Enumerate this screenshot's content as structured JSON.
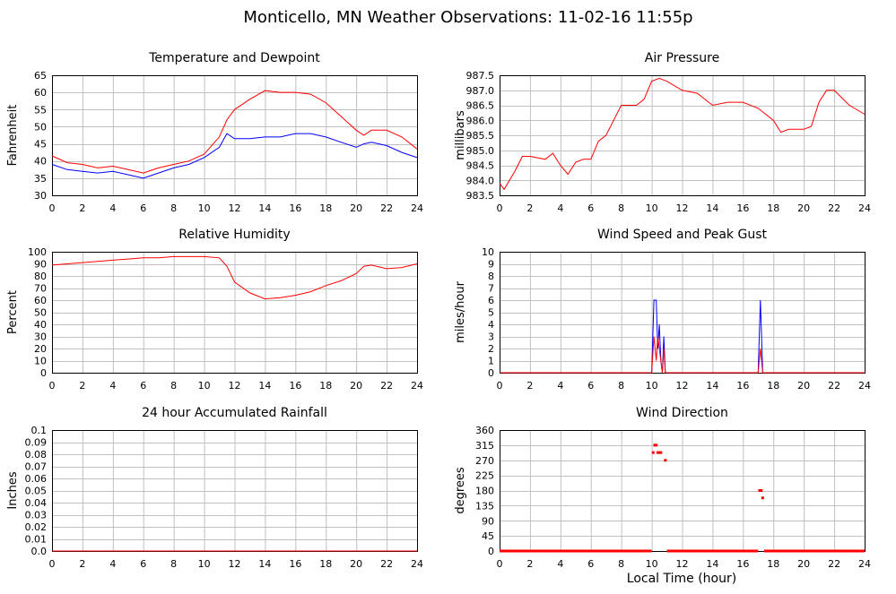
{
  "title": "Monticello, MN Weather Observations: 11-02-16 11:55p",
  "xaxis_label": "Local Time (hour)",
  "colors": {
    "red": "#ff0000",
    "blue": "#0000ff",
    "grid": "#c0c0c0",
    "axis": "#000000"
  },
  "chart_data": [
    {
      "id": "temp",
      "type": "line",
      "title": "Temperature and Dewpoint",
      "ylabel": "Fahrenheit",
      "xlim": [
        0,
        24
      ],
      "ylim": [
        30,
        65
      ],
      "xticks": [
        0,
        2,
        4,
        6,
        8,
        10,
        12,
        14,
        16,
        18,
        20,
        22,
        24
      ],
      "yticks": [
        30,
        35,
        40,
        45,
        50,
        55,
        60,
        65
      ],
      "grid": true,
      "series": [
        {
          "color": "#ff0000",
          "x": [
            0,
            1,
            2,
            3,
            4,
            5,
            6,
            7,
            8,
            9,
            10,
            11,
            11.5,
            12,
            13,
            14,
            15,
            16,
            17,
            18,
            19,
            20,
            20.5,
            21,
            22,
            23,
            24
          ],
          "y": [
            41.5,
            39.5,
            39,
            38,
            38.5,
            37.5,
            36.5,
            38,
            39,
            40,
            42,
            47,
            52,
            55,
            58,
            60.5,
            60,
            60,
            59.5,
            57,
            53,
            49,
            47.5,
            49,
            49,
            47,
            43.5
          ]
        },
        {
          "color": "#0000ff",
          "x": [
            0,
            1,
            2,
            3,
            4,
            5,
            6,
            7,
            8,
            9,
            10,
            11,
            11.5,
            12,
            13,
            14,
            15,
            16,
            17,
            18,
            19,
            20,
            20.5,
            21,
            22,
            23,
            24
          ],
          "y": [
            39,
            37.5,
            37,
            36.5,
            37,
            36,
            35,
            36.5,
            38,
            39,
            41,
            44,
            48,
            46.5,
            46.5,
            47,
            47,
            48,
            48,
            47,
            45.5,
            44,
            45,
            45.5,
            44.5,
            42.5,
            41
          ]
        }
      ]
    },
    {
      "id": "pressure",
      "type": "line",
      "title": "Air Pressure",
      "ylabel": "millibars",
      "xlim": [
        0,
        24
      ],
      "ylim": [
        983.5,
        987.5
      ],
      "xticks": [
        0,
        2,
        4,
        6,
        8,
        10,
        12,
        14,
        16,
        18,
        20,
        22,
        24
      ],
      "yticks": [
        "983.5",
        "984.0",
        "984.5",
        "985.0",
        "985.5",
        "986.0",
        "986.5",
        "987.0",
        "987.5"
      ],
      "grid": true,
      "series": [
        {
          "color": "#ff0000",
          "x": [
            0,
            0.3,
            1,
            1.5,
            2,
            3,
            3.5,
            4,
            4.5,
            5,
            5.5,
            6,
            6.5,
            7,
            7.5,
            8,
            9,
            9.5,
            10,
            10.5,
            11,
            12,
            13,
            14,
            15,
            16,
            17,
            18,
            18.5,
            19,
            20,
            20.5,
            21,
            21.5,
            22,
            23,
            24
          ],
          "y": [
            983.9,
            983.7,
            984.3,
            984.8,
            984.8,
            984.7,
            984.9,
            984.5,
            984.2,
            984.6,
            984.7,
            984.7,
            985.3,
            985.5,
            986.0,
            986.5,
            986.5,
            986.7,
            987.3,
            987.4,
            987.3,
            987.0,
            986.9,
            986.5,
            986.6,
            986.6,
            986.4,
            986.0,
            985.6,
            985.7,
            985.7,
            985.8,
            986.6,
            987.0,
            987.0,
            986.5,
            986.2
          ]
        }
      ]
    },
    {
      "id": "rh",
      "type": "line",
      "title": "Relative Humidity",
      "ylabel": "Percent",
      "xlim": [
        0,
        24
      ],
      "ylim": [
        0,
        100
      ],
      "xticks": [
        0,
        2,
        4,
        6,
        8,
        10,
        12,
        14,
        16,
        18,
        20,
        22,
        24
      ],
      "yticks": [
        0,
        10,
        20,
        30,
        40,
        50,
        60,
        70,
        80,
        90,
        100
      ],
      "grid": true,
      "series": [
        {
          "color": "#ff0000",
          "x": [
            0,
            1,
            2,
            3,
            4,
            5,
            6,
            7,
            8,
            9,
            10,
            11,
            11.5,
            12,
            13,
            14,
            15,
            16,
            17,
            18,
            19,
            20,
            20.5,
            21,
            22,
            23,
            24
          ],
          "y": [
            89,
            90,
            91,
            92,
            93,
            94,
            95,
            95,
            96,
            96,
            96,
            95,
            88,
            75,
            66,
            61,
            62,
            64,
            67,
            72,
            76,
            82,
            88,
            89,
            86,
            87,
            90
          ]
        }
      ]
    },
    {
      "id": "wind",
      "type": "line",
      "title": "Wind Speed and Peak Gust",
      "ylabel": "miles/hour",
      "xlim": [
        0,
        24
      ],
      "ylim": [
        0,
        10
      ],
      "xticks": [
        0,
        2,
        4,
        6,
        8,
        10,
        12,
        14,
        16,
        18,
        20,
        22,
        24
      ],
      "yticks": [
        0,
        1,
        2,
        3,
        4,
        5,
        6,
        7,
        8,
        9,
        10
      ],
      "grid": true,
      "series": [
        {
          "color": "#0000ff",
          "x": [
            0,
            10.0,
            10.15,
            10.3,
            10.4,
            10.5,
            10.6,
            10.7,
            10.8,
            10.9,
            11.0,
            17.0,
            17.15,
            17.3,
            24
          ],
          "y": [
            0,
            0,
            6,
            6,
            2,
            4,
            1,
            0,
            3,
            0,
            0,
            0,
            6,
            0,
            0
          ]
        },
        {
          "color": "#ff0000",
          "x": [
            0,
            10.0,
            10.15,
            10.3,
            10.4,
            10.5,
            10.6,
            10.7,
            10.8,
            10.9,
            11.0,
            17.0,
            17.15,
            17.3,
            24
          ],
          "y": [
            0,
            0,
            3,
            1,
            3,
            2,
            1,
            0,
            2,
            0,
            0,
            0,
            2,
            0,
            0
          ]
        }
      ]
    },
    {
      "id": "rain",
      "type": "line",
      "title": "24 hour Accumulated Rainfall",
      "ylabel": "Inches",
      "xlim": [
        0,
        24
      ],
      "ylim": [
        0,
        0.1
      ],
      "xticks": [
        0,
        2,
        4,
        6,
        8,
        10,
        12,
        14,
        16,
        18,
        20,
        22,
        24
      ],
      "yticks": [
        "0.0",
        "0.01",
        "0.02",
        "0.03",
        "0.04",
        "0.05",
        "0.06",
        "0.07",
        "0.08",
        "0.09",
        "0.1"
      ],
      "grid": true,
      "series": [
        {
          "color": "#ff0000",
          "x": [
            0,
            24
          ],
          "y": [
            0,
            0
          ]
        }
      ]
    },
    {
      "id": "winddir",
      "type": "scatter",
      "title": "Wind Direction",
      "ylabel": "degrees",
      "xlabel": "Local Time (hour)",
      "xlim": [
        0,
        24
      ],
      "ylim": [
        0,
        360
      ],
      "xticks": [
        0,
        2,
        4,
        6,
        8,
        10,
        12,
        14,
        16,
        18,
        20,
        22,
        24
      ],
      "yticks": [
        0,
        45,
        90,
        135,
        180,
        225,
        270,
        315,
        360
      ],
      "grid": true,
      "series": [
        {
          "color": "#ff0000",
          "x": [
            10.1,
            10.2,
            10.3,
            10.4,
            10.5,
            10.6,
            10.9,
            17.1,
            17.2,
            17.3
          ],
          "y": [
            293,
            315,
            315,
            293,
            293,
            293,
            270,
            180,
            180,
            158
          ]
        },
        {
          "color": "#ff0000",
          "baseline": true,
          "segments": [
            [
              0,
              10.0
            ],
            [
              11.0,
              17.0
            ],
            [
              17.4,
              24
            ]
          ],
          "y": 0
        }
      ]
    }
  ]
}
